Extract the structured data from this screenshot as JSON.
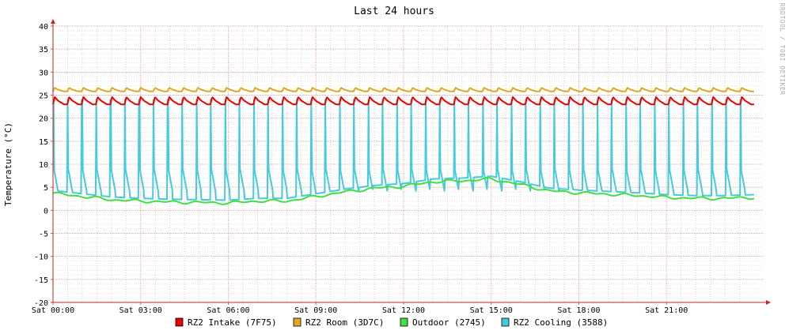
{
  "chart_data": {
    "type": "line",
    "title": "Last 24 hours",
    "ylabel": "Temperature (°C)",
    "watermark": "RRDTOOL / TOBI OETIKER",
    "ylim": [
      -20,
      40
    ],
    "yticks": [
      40,
      35,
      30,
      25,
      20,
      15,
      10,
      5,
      0,
      -5,
      -10,
      -15,
      -20
    ],
    "xlim": [
      0,
      24.3
    ],
    "xticks": [
      {
        "x": 0,
        "label": "Sat 00:00"
      },
      {
        "x": 3,
        "label": "Sat 03:00"
      },
      {
        "x": 6,
        "label": "Sat 06:00"
      },
      {
        "x": 9,
        "label": "Sat 09:00"
      },
      {
        "x": 12,
        "label": "Sat 12:00"
      },
      {
        "x": 15,
        "label": "Sat 15:00"
      },
      {
        "x": 18,
        "label": "Sat 18:00"
      },
      {
        "x": 21,
        "label": "Sat 21:00"
      }
    ],
    "grid": true,
    "legend_position": "bottom",
    "series": [
      {
        "name": "RZ2 Intake (7F75)",
        "color": "#ee0000",
        "pattern": "cycle",
        "cycle_hours": 0.49,
        "low": 23.0,
        "high": 24.6,
        "values": []
      },
      {
        "name": "RZ2 Room (3D7C)",
        "color": "#e0a820",
        "pattern": "cycle",
        "cycle_hours": 0.49,
        "low": 25.8,
        "high": 26.6,
        "values": []
      },
      {
        "name": "Outdoor (2745)",
        "color": "#44dd44",
        "pattern": "line",
        "x": [
          0,
          1,
          2,
          3,
          4,
          5,
          6,
          7,
          8,
          9,
          10,
          11,
          12,
          13,
          14,
          15,
          16,
          17,
          18,
          19,
          20,
          21,
          22,
          23,
          24
        ],
        "values": [
          3.7,
          3.0,
          2.3,
          2.0,
          1.8,
          1.7,
          1.6,
          2.0,
          2.0,
          3.0,
          4.0,
          4.8,
          5.2,
          6.2,
          6.4,
          6.8,
          5.6,
          4.2,
          3.8,
          3.5,
          3.2,
          2.8,
          2.6,
          2.6,
          2.8
        ]
      },
      {
        "name": "RZ2 Cooling (3588)",
        "color": "#44ccdd",
        "pattern": "spikes",
        "cycle_hours": 0.49,
        "peak": 24.0,
        "values": []
      }
    ]
  }
}
